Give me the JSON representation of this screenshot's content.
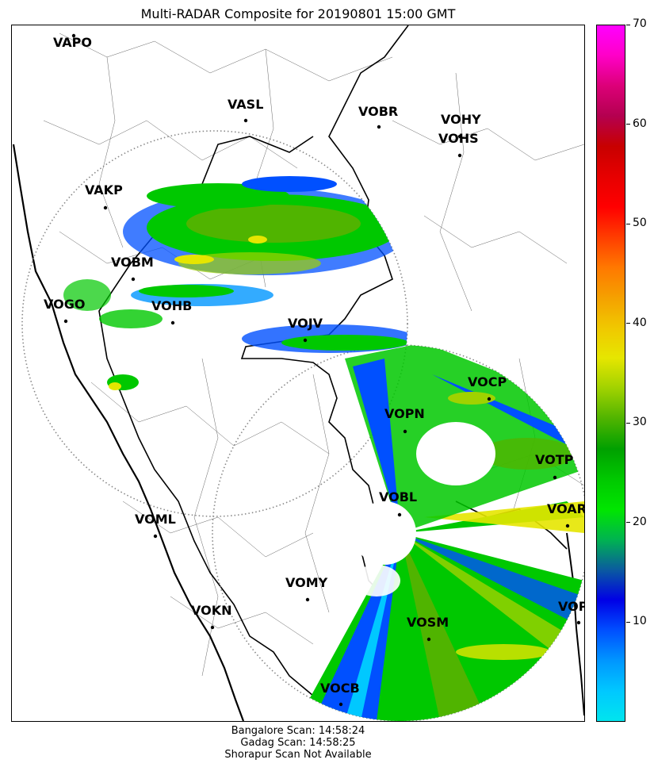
{
  "title": "Multi-RADAR Composite for 20190801 15:00 GMT",
  "footer": {
    "line1": "Bangalore Scan: 14:58:24",
    "line2": "Gadag Scan: 14:58:25",
    "line3": "Shorapur Scan Not Available"
  },
  "colorbar": {
    "min": 0,
    "max": 70,
    "ticks": [
      10,
      20,
      30,
      40,
      50,
      60,
      70
    ],
    "colors": [
      "#00e5ee",
      "#00c8ff",
      "#0096ff",
      "#0050ff",
      "#0000e6",
      "#0a5aa0",
      "#00b450",
      "#00e600",
      "#00c800",
      "#00a000",
      "#50b400",
      "#a0d200",
      "#e6e600",
      "#f0c800",
      "#f5a000",
      "#ff7800",
      "#ff3c00",
      "#ff0000",
      "#e60000",
      "#c80000",
      "#b40050",
      "#dc0078",
      "#ff00c8",
      "#ff00ff"
    ]
  },
  "stations": [
    {
      "id": "VAPO"
    },
    {
      "id": "VASL"
    },
    {
      "id": "VOBR"
    },
    {
      "id": "VOHY"
    },
    {
      "id": "VOHS"
    },
    {
      "id": "VAKP"
    },
    {
      "id": "VOBM"
    },
    {
      "id": "VOGO"
    },
    {
      "id": "VOHB"
    },
    {
      "id": "VOJV"
    },
    {
      "id": "VOCP"
    },
    {
      "id": "VOPN"
    },
    {
      "id": "VOTP"
    },
    {
      "id": "VOBL"
    },
    {
      "id": "VOAR"
    },
    {
      "id": "VOML"
    },
    {
      "id": "VOMY"
    },
    {
      "id": "VOKN"
    },
    {
      "id": "VOPC"
    },
    {
      "id": "VOSM"
    },
    {
      "id": "VOCB"
    }
  ]
}
